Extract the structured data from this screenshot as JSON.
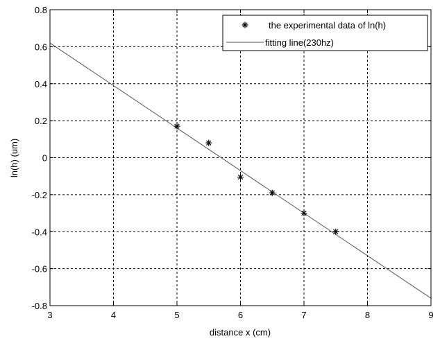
{
  "chart_data": {
    "type": "scatter",
    "title": "",
    "xlabel": "distance x (cm)",
    "ylabel": "ln(h) (um)",
    "xlim": [
      3,
      9
    ],
    "ylim": [
      -0.8,
      0.8
    ],
    "x_ticks": [
      3,
      4,
      5,
      6,
      7,
      8,
      9
    ],
    "y_ticks": [
      -0.8,
      -0.6,
      -0.4,
      -0.2,
      0,
      0.2,
      0.4,
      0.6,
      0.8
    ],
    "x_tick_labels": [
      "3",
      "4",
      "5",
      "6",
      "7",
      "8",
      "9"
    ],
    "y_tick_labels": [
      "-0.8",
      "-0.6",
      "-0.4",
      "-0.2",
      "0",
      "0.2",
      "0.4",
      "0.6",
      "0.8"
    ],
    "grid": true,
    "legend_position": "top-right",
    "series": [
      {
        "name": "the experimental data of ln(h)",
        "type": "scatter",
        "marker": "asterisk",
        "color": "#000000",
        "x": [
          5,
          5.5,
          6,
          6.5,
          7,
          7.5
        ],
        "y": [
          0.17,
          0.08,
          -0.105,
          -0.19,
          -0.3,
          -0.4
        ]
      },
      {
        "name": "fitting line(230hz)",
        "type": "line",
        "color": "#555555",
        "x": [
          3,
          9
        ],
        "y": [
          0.62,
          -0.76
        ]
      }
    ]
  }
}
